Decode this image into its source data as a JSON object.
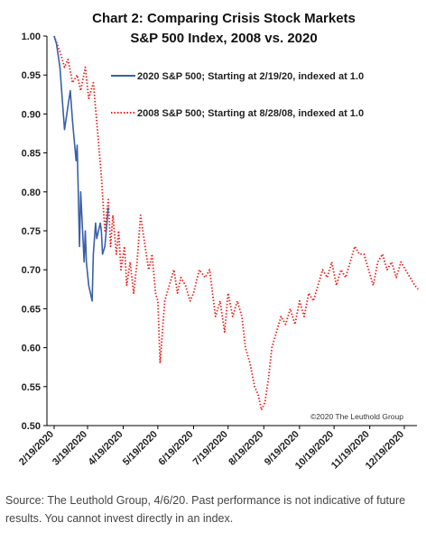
{
  "chart_data": {
    "type": "line",
    "title": "Chart 2: Comparing Crisis Stock Markets",
    "subtitle": "S&P 500 Index, 2008 vs. 2020",
    "xlabel": "",
    "ylabel": "",
    "ylim": [
      0.5,
      1.0
    ],
    "y_ticks": [
      "1.00",
      "0.95",
      "0.90",
      "0.85",
      "0.80",
      "0.75",
      "0.70",
      "0.65",
      "0.60",
      "0.55",
      "0.50"
    ],
    "x_ticks": [
      "2/19/2020",
      "3/19/2020",
      "4/19/2020",
      "5/19/2020",
      "6/19/2020",
      "7/19/2020",
      "8/19/2020",
      "9/19/2020",
      "10/19/2020",
      "11/19/2020",
      "12/19/2020"
    ],
    "grid": false,
    "legend_position": "top-right",
    "annotation": "©2020 The Leuthold Group",
    "series": [
      {
        "name": "2020 S&P 500; Starting at 2/19/20, indexed at 1.0",
        "color": "#3a5fa8",
        "style": "solid",
        "x": [
          "2/19/2020",
          "2/21/2020",
          "2/24/2020",
          "2/26/2020",
          "2/28/2020",
          "3/2/2020",
          "3/4/2020",
          "3/6/2020",
          "3/9/2020",
          "3/10/2020",
          "3/12/2020",
          "3/13/2020",
          "3/16/2020",
          "3/17/2020",
          "3/18/2020",
          "3/20/2020",
          "3/23/2020",
          "3/24/2020",
          "3/26/2020",
          "3/27/2020",
          "3/30/2020",
          "3/31/2020",
          "4/1/2020",
          "4/3/2020",
          "4/6/2020"
        ],
        "values": [
          1.0,
          0.99,
          0.96,
          0.92,
          0.88,
          0.91,
          0.93,
          0.89,
          0.84,
          0.86,
          0.73,
          0.8,
          0.71,
          0.75,
          0.71,
          0.68,
          0.66,
          0.72,
          0.76,
          0.74,
          0.76,
          0.75,
          0.72,
          0.73,
          0.78
        ]
      },
      {
        "name": "2008 S&P 500; Starting at 8/28/08, indexed at 1.0",
        "color": "#e8231f",
        "style": "dotted",
        "x": [
          "2/19/2020",
          "2/24/2020",
          "2/28/2020",
          "3/2/2020",
          "3/6/2020",
          "3/10/2020",
          "3/13/2020",
          "3/17/2020",
          "3/20/2020",
          "3/24/2020",
          "3/27/2020",
          "3/31/2020",
          "4/3/2020",
          "4/6/2020",
          "4/8/2020",
          "4/10/2020",
          "4/13/2020",
          "4/15/2020",
          "4/17/2020",
          "4/20/2020",
          "4/22/2020",
          "4/25/2020",
          "4/28/2020",
          "5/1/2020",
          "5/4/2020",
          "5/8/2020",
          "5/11/2020",
          "5/14/2020",
          "5/17/2020",
          "5/19/2020",
          "5/21/2020",
          "5/25/2020",
          "5/29/2020",
          "6/2/2020",
          "6/5/2020",
          "6/8/2020",
          "6/12/2020",
          "6/16/2020",
          "6/19/2020",
          "6/24/2020",
          "6/29/2020",
          "7/3/2020",
          "7/8/2020",
          "7/12/2020",
          "7/16/2020",
          "7/19/2020",
          "7/23/2020",
          "7/27/2020",
          "7/31/2020",
          "8/3/2020",
          "8/7/2020",
          "8/11/2020",
          "8/14/2020",
          "8/17/2020",
          "8/20/2020",
          "8/23/2020",
          "8/26/2020",
          "8/30/2020",
          "9/3/2020",
          "9/7/2020",
          "9/11/2020",
          "9/15/2020",
          "9/19/2020",
          "9/23/2020",
          "9/27/2020",
          "10/1/2020",
          "10/5/2020",
          "10/9/2020",
          "10/13/2020",
          "10/17/2020",
          "10/21/2020",
          "10/25/2020",
          "10/29/2020",
          "11/2/2020",
          "11/6/2020",
          "11/10/2020",
          "11/14/2020",
          "11/18/2020",
          "11/22/2020",
          "11/26/2020",
          "11/30/2020",
          "12/4/2020",
          "12/8/2020",
          "12/12/2020",
          "12/16/2020",
          "12/20/2020",
          "12/24/2020",
          "12/28/2020",
          "12/31/2020"
        ],
        "values": [
          1.0,
          0.98,
          0.96,
          0.97,
          0.94,
          0.95,
          0.93,
          0.96,
          0.92,
          0.94,
          0.89,
          0.82,
          0.75,
          0.79,
          0.73,
          0.77,
          0.72,
          0.75,
          0.7,
          0.73,
          0.68,
          0.71,
          0.67,
          0.71,
          0.77,
          0.73,
          0.7,
          0.72,
          0.67,
          0.66,
          0.58,
          0.66,
          0.68,
          0.7,
          0.67,
          0.69,
          0.68,
          0.66,
          0.67,
          0.7,
          0.69,
          0.7,
          0.64,
          0.66,
          0.62,
          0.67,
          0.64,
          0.66,
          0.64,
          0.6,
          0.58,
          0.55,
          0.54,
          0.52,
          0.53,
          0.56,
          0.6,
          0.62,
          0.64,
          0.63,
          0.65,
          0.63,
          0.66,
          0.64,
          0.67,
          0.66,
          0.68,
          0.7,
          0.69,
          0.71,
          0.68,
          0.7,
          0.69,
          0.71,
          0.73,
          0.72,
          0.72,
          0.7,
          0.68,
          0.71,
          0.72,
          0.7,
          0.71,
          0.69,
          0.71,
          0.7,
          0.69,
          0.68,
          0.675
        ]
      }
    ]
  },
  "footer": {
    "source": "Source: The Leuthold Group, 4/6/20. Past performance is not indicative of future results. You cannot invest directly in an index."
  }
}
